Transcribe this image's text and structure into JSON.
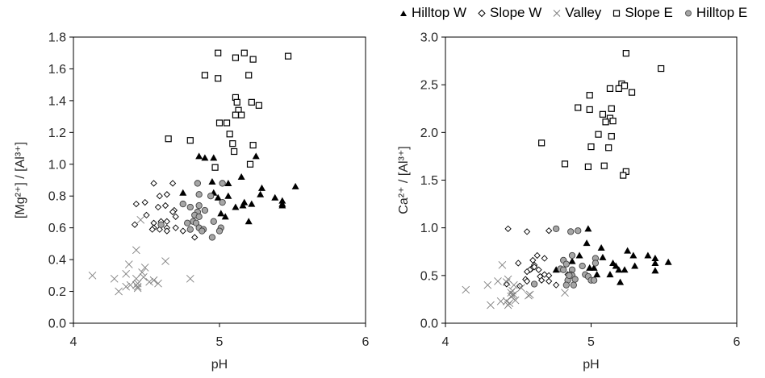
{
  "legend": [
    {
      "label": "Hilltop W",
      "marker": "triangle-filled"
    },
    {
      "label": "Slope W",
      "marker": "diamond-open"
    },
    {
      "label": "Valley",
      "marker": "cross"
    },
    {
      "label": "Slope E",
      "marker": "square-open"
    },
    {
      "label": "Hilltop E",
      "marker": "circle-gray"
    }
  ],
  "colors": {
    "marker_dark": "#000000",
    "circle_fill": "#a6a6a6",
    "cross": "#7f7f7f",
    "axis": "#000000",
    "text": "#262626"
  },
  "chart_data": [
    {
      "type": "scatter",
      "xlabel": "pH",
      "ylabel": "[Mg²⁺] / [Al³⁺]",
      "xlim": [
        4,
        6
      ],
      "ylim": [
        0,
        1.8
      ],
      "x_ticks": [
        "4",
        "5",
        "6"
      ],
      "y_ticks": [
        "0.0",
        "0.2",
        "0.4",
        "0.6",
        "0.8",
        "1.0",
        "1.2",
        "1.4",
        "1.6",
        "1.8"
      ],
      "grid": false,
      "series": [
        {
          "name": "Hilltop W",
          "points": [
            [
              5.15,
              0.92
            ],
            [
              4.95,
              0.89
            ],
            [
              5.06,
              0.88
            ],
            [
              5.29,
              0.85
            ],
            [
              5.52,
              0.86
            ],
            [
              4.75,
              0.82
            ],
            [
              4.96,
              0.82
            ],
            [
              5.28,
              0.81
            ],
            [
              5.06,
              0.8
            ],
            [
              4.99,
              0.79
            ],
            [
              5.38,
              0.79
            ],
            [
              5.17,
              0.76
            ],
            [
              5.22,
              0.75
            ],
            [
              5.16,
              0.74
            ],
            [
              5.43,
              0.77
            ],
            [
              5.43,
              0.75
            ],
            [
              5.43,
              0.74
            ],
            [
              5.11,
              0.73
            ],
            [
              5.01,
              0.69
            ],
            [
              5.04,
              0.67
            ],
            [
              5.2,
              0.64
            ],
            [
              4.86,
              1.05
            ],
            [
              4.9,
              1.04
            ],
            [
              4.96,
              1.04
            ],
            [
              5.25,
              1.05
            ]
          ]
        },
        {
          "name": "Slope W",
          "points": [
            [
              4.55,
              0.88
            ],
            [
              4.68,
              0.88
            ],
            [
              4.59,
              0.8
            ],
            [
              4.64,
              0.81
            ],
            [
              4.43,
              0.75
            ],
            [
              4.49,
              0.76
            ],
            [
              4.58,
              0.73
            ],
            [
              4.63,
              0.74
            ],
            [
              4.69,
              0.71
            ],
            [
              4.68,
              0.7
            ],
            [
              4.5,
              0.68
            ],
            [
              4.7,
              0.67
            ],
            [
              4.42,
              0.62
            ],
            [
              4.55,
              0.63
            ],
            [
              4.6,
              0.64
            ],
            [
              4.64,
              0.64
            ],
            [
              4.55,
              0.6
            ],
            [
              4.64,
              0.6
            ],
            [
              4.54,
              0.59
            ],
            [
              4.59,
              0.59
            ],
            [
              4.64,
              0.58
            ],
            [
              4.7,
              0.6
            ],
            [
              4.75,
              0.58
            ],
            [
              4.83,
              0.54
            ]
          ]
        },
        {
          "name": "Valley",
          "points": [
            [
              4.46,
              0.65
            ],
            [
              4.43,
              0.46
            ],
            [
              4.63,
              0.39
            ],
            [
              4.38,
              0.37
            ],
            [
              4.49,
              0.35
            ],
            [
              4.36,
              0.31
            ],
            [
              4.47,
              0.32
            ],
            [
              4.13,
              0.3
            ],
            [
              4.28,
              0.28
            ],
            [
              4.8,
              0.28
            ],
            [
              4.43,
              0.28
            ],
            [
              4.48,
              0.29
            ],
            [
              4.52,
              0.26
            ],
            [
              4.55,
              0.27
            ],
            [
              4.58,
              0.25
            ],
            [
              4.36,
              0.23
            ],
            [
              4.39,
              0.24
            ],
            [
              4.43,
              0.24
            ],
            [
              4.44,
              0.23
            ],
            [
              4.44,
              0.25
            ],
            [
              4.31,
              0.2
            ],
            [
              4.44,
              0.22
            ]
          ]
        },
        {
          "name": "Slope E",
          "points": [
            [
              4.99,
              1.7
            ],
            [
              5.11,
              1.67
            ],
            [
              5.17,
              1.7
            ],
            [
              5.23,
              1.66
            ],
            [
              5.47,
              1.68
            ],
            [
              4.9,
              1.56
            ],
            [
              4.99,
              1.54
            ],
            [
              5.2,
              1.56
            ],
            [
              5.11,
              1.42
            ],
            [
              5.12,
              1.39
            ],
            [
              5.22,
              1.39
            ],
            [
              5.27,
              1.37
            ],
            [
              5.13,
              1.34
            ],
            [
              5.11,
              1.31
            ],
            [
              5.15,
              1.31
            ],
            [
              5.0,
              1.26
            ],
            [
              5.05,
              1.26
            ],
            [
              5.07,
              1.19
            ],
            [
              4.65,
              1.16
            ],
            [
              4.8,
              1.15
            ],
            [
              5.09,
              1.13
            ],
            [
              5.23,
              1.12
            ],
            [
              5.1,
              1.08
            ],
            [
              5.21,
              1.0
            ],
            [
              4.97,
              0.98
            ]
          ]
        },
        {
          "name": "Hilltop E",
          "points": [
            [
              4.85,
              0.88
            ],
            [
              5.02,
              0.88
            ],
            [
              4.86,
              0.81
            ],
            [
              4.94,
              0.8
            ],
            [
              4.75,
              0.75
            ],
            [
              5.02,
              0.76
            ],
            [
              4.8,
              0.73
            ],
            [
              4.86,
              0.74
            ],
            [
              4.85,
              0.7
            ],
            [
              4.9,
              0.71
            ],
            [
              4.83,
              0.68
            ],
            [
              4.86,
              0.67
            ],
            [
              4.96,
              0.64
            ],
            [
              4.78,
              0.63
            ],
            [
              4.82,
              0.64
            ],
            [
              4.84,
              0.63
            ],
            [
              4.6,
              0.62
            ],
            [
              4.86,
              0.6
            ],
            [
              4.8,
              0.59
            ],
            [
              4.89,
              0.59
            ],
            [
              4.88,
              0.58
            ],
            [
              5.01,
              0.6
            ],
            [
              5.0,
              0.58
            ],
            [
              4.95,
              0.54
            ]
          ]
        }
      ]
    },
    {
      "type": "scatter",
      "xlabel": "pH",
      "ylabel": "Ca²⁺ / [Al³⁺]",
      "xlim": [
        4,
        6
      ],
      "ylim": [
        0,
        3.0
      ],
      "x_ticks": [
        "4",
        "5",
        "6"
      ],
      "y_ticks": [
        "0.0",
        "0.5",
        "1.0",
        "1.5",
        "2.0",
        "2.5",
        "3.0"
      ],
      "grid": false,
      "series": [
        {
          "name": "Hilltop W",
          "points": [
            [
              4.98,
              0.99
            ],
            [
              4.97,
              0.84
            ],
            [
              5.07,
              0.79
            ],
            [
              5.25,
              0.76
            ],
            [
              4.92,
              0.71
            ],
            [
              5.08,
              0.69
            ],
            [
              5.29,
              0.71
            ],
            [
              5.39,
              0.71
            ],
            [
              5.44,
              0.68
            ],
            [
              5.44,
              0.63
            ],
            [
              5.53,
              0.64
            ],
            [
              4.87,
              0.65
            ],
            [
              5.15,
              0.63
            ],
            [
              5.17,
              0.6
            ],
            [
              5.3,
              0.6
            ],
            [
              4.76,
              0.56
            ],
            [
              4.99,
              0.58
            ],
            [
              5.02,
              0.58
            ],
            [
              5.19,
              0.56
            ],
            [
              5.23,
              0.56
            ],
            [
              5.44,
              0.55
            ],
            [
              5.13,
              0.51
            ],
            [
              5.04,
              0.51
            ],
            [
              5.2,
              0.43
            ]
          ]
        },
        {
          "name": "Slope W",
          "points": [
            [
              4.43,
              0.99
            ],
            [
              4.56,
              0.96
            ],
            [
              4.71,
              0.97
            ],
            [
              4.63,
              0.71
            ],
            [
              4.68,
              0.68
            ],
            [
              4.6,
              0.66
            ],
            [
              4.5,
              0.63
            ],
            [
              4.61,
              0.61
            ],
            [
              4.59,
              0.57
            ],
            [
              4.58,
              0.56
            ],
            [
              4.64,
              0.56
            ],
            [
              4.68,
              0.51
            ],
            [
              4.71,
              0.5
            ],
            [
              4.65,
              0.49
            ],
            [
              4.55,
              0.46
            ],
            [
              4.66,
              0.45
            ],
            [
              4.71,
              0.44
            ],
            [
              4.56,
              0.44
            ],
            [
              4.42,
              0.41
            ],
            [
              4.51,
              0.39
            ],
            [
              4.76,
              0.4
            ],
            [
              4.84,
              0.51
            ],
            [
              4.56,
              0.54
            ],
            [
              4.61,
              0.59
            ]
          ]
        },
        {
          "name": "Valley",
          "points": [
            [
              4.39,
              0.61
            ],
            [
              4.14,
              0.35
            ],
            [
              4.29,
              0.4
            ],
            [
              4.36,
              0.44
            ],
            [
              4.43,
              0.46
            ],
            [
              4.47,
              0.4
            ],
            [
              4.52,
              0.37
            ],
            [
              4.58,
              0.3
            ],
            [
              4.82,
              0.32
            ],
            [
              4.47,
              0.3
            ],
            [
              4.45,
              0.28
            ],
            [
              4.38,
              0.23
            ],
            [
              4.31,
              0.19
            ],
            [
              4.44,
              0.21
            ],
            [
              4.48,
              0.24
            ],
            [
              4.42,
              0.23
            ],
            [
              4.46,
              0.29
            ],
            [
              4.43,
              0.19
            ],
            [
              4.42,
              0.43
            ],
            [
              4.45,
              0.32
            ],
            [
              4.57,
              0.29
            ],
            [
              4.46,
              0.34
            ]
          ]
        },
        {
          "name": "Slope E",
          "points": [
            [
              5.24,
              2.83
            ],
            [
              5.48,
              2.67
            ],
            [
              5.21,
              2.51
            ],
            [
              5.23,
              2.49
            ],
            [
              5.13,
              2.46
            ],
            [
              5.19,
              2.46
            ],
            [
              5.28,
              2.42
            ],
            [
              4.99,
              2.39
            ],
            [
              4.91,
              2.26
            ],
            [
              4.99,
              2.24
            ],
            [
              5.14,
              2.25
            ],
            [
              5.08,
              2.19
            ],
            [
              5.13,
              2.15
            ],
            [
              5.1,
              2.11
            ],
            [
              5.15,
              2.12
            ],
            [
              5.05,
              1.98
            ],
            [
              5.14,
              1.96
            ],
            [
              4.66,
              1.89
            ],
            [
              5.0,
              1.85
            ],
            [
              5.12,
              1.84
            ],
            [
              4.82,
              1.67
            ],
            [
              4.98,
              1.64
            ],
            [
              5.09,
              1.65
            ],
            [
              5.24,
              1.59
            ],
            [
              5.22,
              1.55
            ]
          ]
        },
        {
          "name": "Hilltop E",
          "points": [
            [
              4.76,
              0.99
            ],
            [
              4.86,
              0.96
            ],
            [
              4.91,
              0.97
            ],
            [
              4.87,
              0.71
            ],
            [
              4.81,
              0.66
            ],
            [
              4.83,
              0.62
            ],
            [
              5.03,
              0.68
            ],
            [
              5.03,
              0.63
            ],
            [
              4.94,
              0.6
            ],
            [
              4.79,
              0.57
            ],
            [
              4.81,
              0.56
            ],
            [
              4.87,
              0.56
            ],
            [
              4.86,
              0.51
            ],
            [
              4.87,
              0.5
            ],
            [
              4.96,
              0.51
            ],
            [
              4.98,
              0.49
            ],
            [
              4.84,
              0.45
            ],
            [
              4.89,
              0.46
            ],
            [
              5.0,
              0.45
            ],
            [
              5.02,
              0.45
            ],
            [
              4.61,
              0.41
            ],
            [
              4.83,
              0.4
            ],
            [
              4.88,
              0.4
            ],
            [
              4.85,
              0.5
            ]
          ]
        }
      ]
    }
  ]
}
